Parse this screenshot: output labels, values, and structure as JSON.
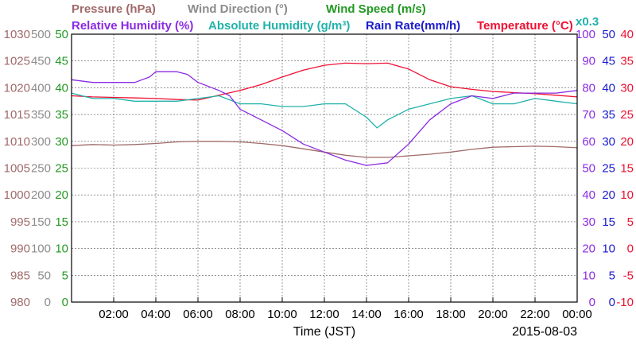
{
  "chart_data": {
    "type": "line",
    "date": "2015-08-03",
    "xlabel": "Time (JST)",
    "x_ticks": [
      "02:00",
      "04:00",
      "06:00",
      "08:00",
      "10:00",
      "12:00",
      "14:00",
      "16:00",
      "18:00",
      "20:00",
      "22:00",
      "00:00"
    ],
    "x_range_hours": [
      0,
      24
    ],
    "grid": true,
    "legend": [
      {
        "key": "pressure",
        "text": "Pressure (hPa)",
        "color": "#a06a6a"
      },
      {
        "key": "wind_dir",
        "text": "Wind Direction (°)",
        "color": "#8c8c8c"
      },
      {
        "key": "wind_speed",
        "text": "Wind Speed (m/s)",
        "color": "#229922"
      },
      {
        "key": "rh",
        "text": "Relative Humidity (%)",
        "color": "#8a2be2"
      },
      {
        "key": "ah",
        "text": "Absolute Humidity (g/m³)",
        "color": "#20b2aa"
      },
      {
        "key": "rain",
        "text": "Rain Rate(mm/h)",
        "color": "#1a1acc"
      },
      {
        "key": "temp",
        "text": "Temperature (°C)",
        "color": "#ee1133"
      }
    ],
    "ah_scale_note": "x0.3",
    "axes": {
      "pressure": {
        "min": 980,
        "max": 1030,
        "ticks": [
          980,
          985,
          990,
          995,
          1000,
          1005,
          1010,
          1015,
          1020,
          1025,
          1030
        ],
        "color": "#a06a6a"
      },
      "wind_dir": {
        "min": 0,
        "max": 500,
        "ticks": [
          0,
          50,
          100,
          150,
          200,
          250,
          300,
          350,
          400,
          450,
          500
        ],
        "color": "#8c8c8c"
      },
      "wind_speed": {
        "min": 0,
        "max": 50,
        "ticks": [
          0,
          5,
          10,
          15,
          20,
          25,
          30,
          35,
          40,
          45,
          50
        ],
        "color": "#229922"
      },
      "rh": {
        "min": 0,
        "max": 100,
        "ticks": [
          0,
          10,
          20,
          30,
          40,
          50,
          60,
          70,
          80,
          90,
          100
        ],
        "color": "#8a2be2"
      },
      "rain": {
        "min": 0,
        "max": 50,
        "ticks": [
          0,
          5,
          10,
          15,
          20,
          25,
          30,
          35,
          40,
          45,
          50
        ],
        "color": "#1a1acc"
      },
      "temp": {
        "min": -10,
        "max": 40,
        "ticks": [
          -10,
          -5,
          0,
          5,
          10,
          15,
          20,
          25,
          30,
          35,
          40
        ],
        "color": "#ee1133"
      }
    },
    "series": [
      {
        "key": "pressure",
        "color": "#a06a6a",
        "axis": "pressure",
        "x": [
          0,
          1,
          2,
          3,
          4,
          5,
          6,
          7,
          8,
          9,
          10,
          11,
          12,
          13,
          14,
          15,
          16,
          17,
          18,
          19,
          20,
          21,
          22,
          23,
          24
        ],
        "y": [
          1009.2,
          1009.4,
          1009.3,
          1009.4,
          1009.6,
          1009.9,
          1010.0,
          1010.0,
          1009.9,
          1009.6,
          1009.2,
          1008.6,
          1008.0,
          1007.4,
          1007.0,
          1007.0,
          1007.3,
          1007.6,
          1008.0,
          1008.5,
          1008.9,
          1009.0,
          1009.1,
          1009.0,
          1008.8
        ]
      },
      {
        "key": "temp",
        "color": "#ee1133",
        "axis": "temp",
        "x": [
          0,
          1,
          2,
          3,
          4,
          5,
          6,
          7,
          8,
          9,
          10,
          11,
          12,
          13,
          14,
          15,
          16,
          17,
          18,
          19,
          20,
          21,
          22,
          23,
          24
        ],
        "y": [
          28.5,
          28.3,
          28.2,
          28.1,
          28.0,
          27.8,
          27.7,
          28.6,
          29.5,
          30.6,
          32.0,
          33.3,
          34.2,
          34.6,
          34.5,
          34.6,
          33.5,
          31.5,
          30.2,
          29.7,
          29.3,
          29.1,
          28.9,
          28.6,
          28.3
        ]
      },
      {
        "key": "ah",
        "color": "#20b2aa",
        "axis": "rh",
        "x": [
          0,
          1,
          2,
          3,
          4,
          5,
          6,
          7,
          8,
          9,
          10,
          11,
          12,
          13,
          14,
          14.5,
          15,
          16,
          17,
          18,
          19,
          20,
          21,
          22,
          23,
          24
        ],
        "y": [
          78,
          76,
          76,
          75,
          75,
          75,
          76,
          77,
          74,
          74,
          73,
          73,
          74,
          74,
          69,
          65,
          68,
          72,
          74,
          76,
          77,
          74,
          74,
          76,
          75,
          74
        ]
      },
      {
        "key": "rh",
        "color": "#8a2be2",
        "axis": "rh",
        "x": [
          0,
          1,
          2,
          3,
          3.7,
          4,
          5,
          5.5,
          6,
          7,
          7.5,
          8,
          9,
          10,
          11,
          12,
          13,
          14,
          15,
          16,
          17,
          18,
          19,
          20,
          21,
          22,
          23,
          24
        ],
        "y": [
          83,
          82,
          82,
          82,
          84,
          86,
          86,
          85,
          82,
          79,
          77,
          72,
          68,
          64,
          59,
          56,
          53,
          51,
          52,
          59,
          68,
          74,
          77,
          76,
          78,
          78,
          78,
          79
        ]
      }
    ]
  }
}
